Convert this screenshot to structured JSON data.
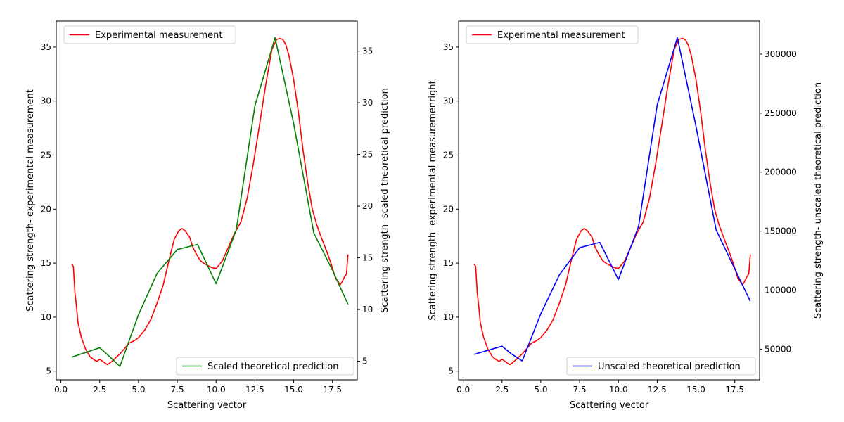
{
  "chart_data": [
    {
      "type": "line",
      "xlabel": "Scattering vector",
      "ylabel": "Scattering strength- experimental measurement",
      "ylabel_right": "Scattering strength- scaled theoretical prediction",
      "xlim": [
        -0.3,
        19.1
      ],
      "ylim": [
        4.2,
        37.4
      ],
      "ylim_right": [
        3.2,
        37.9
      ],
      "xticks": [
        0.0,
        2.5,
        5.0,
        7.5,
        10.0,
        12.5,
        15.0,
        17.5
      ],
      "xtick_labels": [
        "0.0",
        "2.5",
        "5.0",
        "7.5",
        "10.0",
        "12.5",
        "15.0",
        "17.5"
      ],
      "yticks": [
        5,
        10,
        15,
        20,
        25,
        30,
        35
      ],
      "ytick_labels": [
        "5",
        "10",
        "15",
        "20",
        "25",
        "30",
        "35"
      ],
      "yticks_right": [
        5,
        10,
        15,
        20,
        25,
        30,
        35
      ],
      "ytick_labels_right": [
        "5",
        "10",
        "15",
        "20",
        "25",
        "30",
        "35"
      ],
      "grid": false,
      "legend_left_position": "upper-left",
      "legend_right_position": "lower-right",
      "series": [
        {
          "name": "Experimental measurement",
          "axis": "left",
          "color": "#ff0000",
          "x": [
            0.7,
            0.8,
            0.9,
            1.0,
            1.1,
            1.3,
            1.6,
            1.9,
            2.1,
            2.3,
            2.5,
            2.7,
            2.9,
            3.0,
            3.2,
            3.5,
            3.8,
            4.1,
            4.4,
            4.7,
            5.0,
            5.4,
            5.8,
            6.2,
            6.6,
            7.0,
            7.3,
            7.6,
            7.8,
            8.0,
            8.3,
            8.5,
            8.7,
            9.0,
            9.3,
            9.7,
            10.0,
            10.4,
            10.8,
            11.2,
            11.6,
            12.0,
            12.4,
            12.8,
            13.2,
            13.6,
            13.9,
            14.1,
            14.3,
            14.5,
            14.7,
            15.0,
            15.3,
            15.6,
            15.9,
            16.2,
            16.5,
            16.8,
            17.1,
            17.4,
            17.7,
            18.0,
            18.1,
            18.3,
            18.4,
            18.5
          ],
          "y": [
            14.9,
            14.7,
            12.3,
            11.0,
            9.5,
            8.2,
            7.0,
            6.3,
            6.1,
            5.9,
            6.1,
            5.9,
            5.7,
            5.6,
            5.8,
            6.2,
            6.6,
            7.1,
            7.6,
            7.8,
            8.1,
            8.8,
            9.8,
            11.3,
            13.0,
            15.5,
            17.2,
            18.0,
            18.2,
            18.0,
            17.4,
            16.5,
            15.9,
            15.2,
            14.9,
            14.6,
            14.5,
            15.2,
            16.5,
            17.8,
            18.8,
            21.0,
            24.2,
            27.8,
            31.5,
            34.8,
            35.7,
            35.8,
            35.7,
            35.2,
            34.2,
            32.0,
            29.0,
            25.5,
            22.5,
            20.0,
            18.5,
            17.3,
            16.2,
            15.0,
            13.6,
            13.0,
            13.2,
            13.8,
            14.0,
            15.8
          ]
        },
        {
          "name": "Scaled theoretical prediction",
          "axis": "right",
          "color": "#008000",
          "x": [
            0.7,
            2.5,
            3.1,
            3.8,
            5.0,
            6.2,
            7.5,
            8.8,
            10.0,
            11.3,
            12.5,
            13.8,
            15.0,
            16.3,
            17.5,
            18.5
          ],
          "y": [
            5.4,
            6.3,
            5.5,
            4.5,
            9.5,
            13.5,
            15.8,
            16.3,
            12.5,
            17.7,
            29.7,
            36.3,
            28.0,
            17.4,
            13.8,
            10.5
          ]
        }
      ]
    },
    {
      "type": "line",
      "xlabel": "Scattering vector",
      "ylabel": "Scattering strength- experimental measuremenright",
      "ylabel_right": "Scattering strength- unscaled theoretical prediction",
      "xlim": [
        -0.3,
        19.1
      ],
      "ylim": [
        4.2,
        37.4
      ],
      "ylim_right": [
        24000,
        328000
      ],
      "xticks": [
        0.0,
        2.5,
        5.0,
        7.5,
        10.0,
        12.5,
        15.0,
        17.5
      ],
      "xtick_labels": [
        "0.0",
        "2.5",
        "5.0",
        "7.5",
        "10.0",
        "12.5",
        "15.0",
        "17.5"
      ],
      "yticks": [
        5,
        10,
        15,
        20,
        25,
        30,
        35
      ],
      "ytick_labels": [
        "5",
        "10",
        "15",
        "20",
        "25",
        "30",
        "35"
      ],
      "yticks_right": [
        50000,
        100000,
        150000,
        200000,
        250000,
        300000
      ],
      "ytick_labels_right": [
        "50000",
        "100000",
        "150000",
        "200000",
        "250000",
        "300000"
      ],
      "grid": false,
      "legend_left_position": "upper-left",
      "legend_right_position": "lower-right",
      "series": [
        {
          "name": "Experimental measurement",
          "axis": "left",
          "color": "#ff0000",
          "x": [
            0.7,
            0.8,
            0.9,
            1.0,
            1.1,
            1.3,
            1.6,
            1.9,
            2.1,
            2.3,
            2.5,
            2.7,
            2.9,
            3.0,
            3.2,
            3.5,
            3.8,
            4.1,
            4.4,
            4.7,
            5.0,
            5.4,
            5.8,
            6.2,
            6.6,
            7.0,
            7.3,
            7.6,
            7.8,
            8.0,
            8.3,
            8.5,
            8.7,
            9.0,
            9.3,
            9.7,
            10.0,
            10.4,
            10.8,
            11.2,
            11.6,
            12.0,
            12.4,
            12.8,
            13.2,
            13.6,
            13.9,
            14.1,
            14.3,
            14.5,
            14.7,
            15.0,
            15.3,
            15.6,
            15.9,
            16.2,
            16.5,
            16.8,
            17.1,
            17.4,
            17.7,
            18.0,
            18.1,
            18.3,
            18.4,
            18.5
          ],
          "y": [
            14.9,
            14.7,
            12.3,
            11.0,
            9.5,
            8.2,
            7.0,
            6.3,
            6.1,
            5.9,
            6.1,
            5.9,
            5.7,
            5.6,
            5.8,
            6.2,
            6.6,
            7.1,
            7.6,
            7.8,
            8.1,
            8.8,
            9.8,
            11.3,
            13.0,
            15.5,
            17.2,
            18.0,
            18.2,
            18.0,
            17.4,
            16.5,
            15.9,
            15.2,
            14.9,
            14.6,
            14.5,
            15.2,
            16.5,
            17.8,
            18.8,
            21.0,
            24.2,
            27.8,
            31.5,
            34.8,
            35.7,
            35.8,
            35.7,
            35.2,
            34.2,
            32.0,
            29.0,
            25.5,
            22.5,
            20.0,
            18.5,
            17.3,
            16.2,
            15.0,
            13.6,
            13.0,
            13.2,
            13.8,
            14.0,
            15.8
          ]
        },
        {
          "name": "Unscaled theoretical prediction",
          "axis": "right",
          "color": "#0000ff",
          "x": [
            0.7,
            2.5,
            3.1,
            3.8,
            5.0,
            6.2,
            7.5,
            8.8,
            10.0,
            11.3,
            12.5,
            13.8,
            15.0,
            16.3,
            17.5,
            18.5
          ],
          "y": [
            45500,
            52500,
            46000,
            40000,
            80000,
            113000,
            136000,
            140500,
            109000,
            154000,
            257000,
            314000,
            239000,
            151000,
            118000,
            90500
          ]
        }
      ]
    }
  ]
}
